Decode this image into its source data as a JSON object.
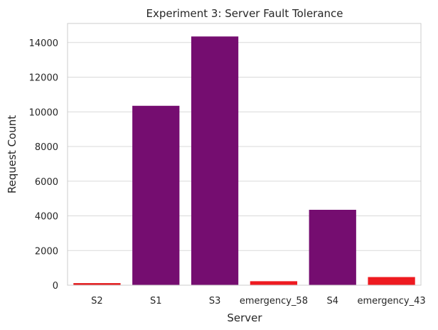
{
  "chart_data": {
    "type": "bar",
    "title": "Experiment 3: Server Fault Tolerance",
    "xlabel": "Server",
    "ylabel": "Request Count",
    "categories": [
      "S2",
      "S1",
      "S3",
      "emergency_58",
      "S4",
      "emergency_43"
    ],
    "values": [
      120,
      10350,
      14350,
      230,
      4350,
      470
    ],
    "bar_colors": [
      "#e31a1c",
      "#750d70",
      "#750d70",
      "#ee1a20",
      "#750d70",
      "#ee1a20"
    ],
    "ylim": [
      0,
      15100
    ],
    "yticks": [
      0,
      2000,
      4000,
      6000,
      8000,
      10000,
      12000,
      14000
    ],
    "grid": true,
    "legend": "none"
  }
}
